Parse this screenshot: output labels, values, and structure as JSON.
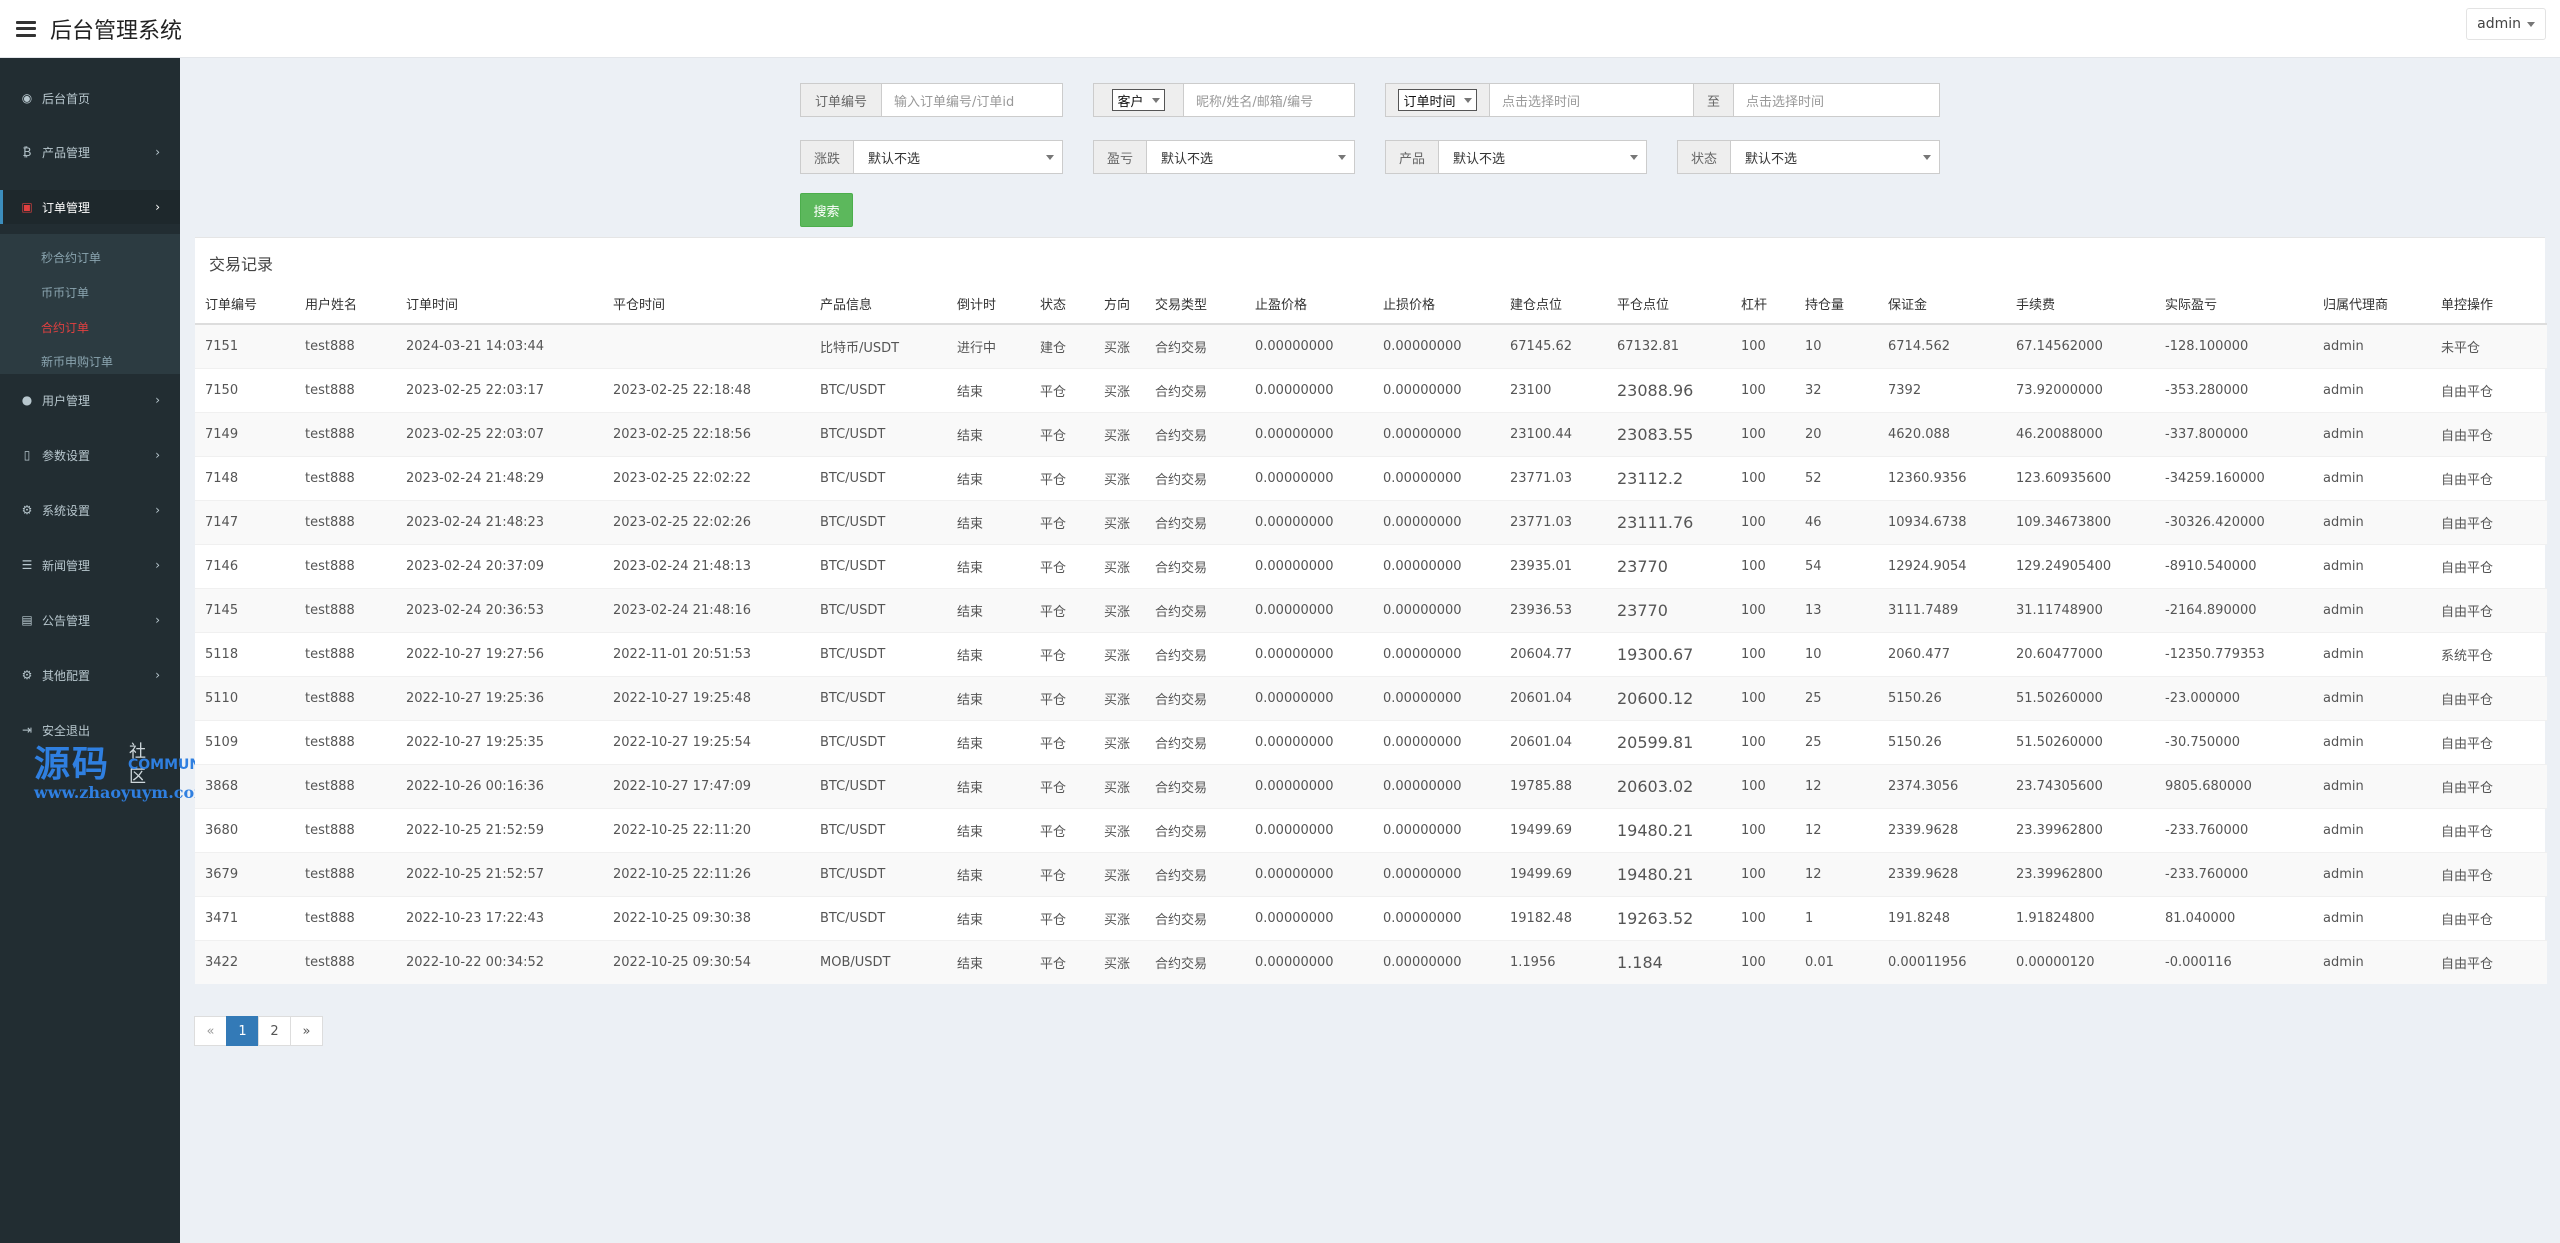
{
  "header": {
    "title": "后台管理系统",
    "user": "admin"
  },
  "sidebar": {
    "items": [
      {
        "label": "后台首页",
        "icon": "dashboard-icon",
        "glyph": "◉"
      },
      {
        "label": "产品管理",
        "icon": "bitcoin-icon",
        "glyph": "₿"
      },
      {
        "label": "订单管理",
        "icon": "order-icon",
        "glyph": "▣"
      },
      {
        "label": "用户管理",
        "icon": "user-icon",
        "glyph": "●"
      },
      {
        "label": "参数设置",
        "icon": "file-icon",
        "glyph": "▯"
      },
      {
        "label": "系统设置",
        "icon": "gears-icon",
        "glyph": "⚙"
      },
      {
        "label": "新闻管理",
        "icon": "list-icon",
        "glyph": "☰"
      },
      {
        "label": "公告管理",
        "icon": "notice-icon",
        "glyph": "▤"
      },
      {
        "label": "其他配置",
        "icon": "gear-icon",
        "glyph": "⚙"
      },
      {
        "label": "安全退出",
        "icon": "logout-icon",
        "glyph": "⇥"
      }
    ],
    "submenu": [
      "秒合约订单",
      "币币订单",
      "合约订单",
      "新币申购订单"
    ]
  },
  "watermark": {
    "big": "源码",
    "small": "社区",
    "community": "COMMUNITY",
    "url": "www.zhaoyuym.com"
  },
  "filters": {
    "order_no_label": "订单编号",
    "order_no_placeholder": "输入订单编号/订单id",
    "customer_select": "客户",
    "customer_placeholder": "昵称/姓名/邮箱/编号",
    "time_select": "订单时间",
    "time_from_placeholder": "点击选择时间",
    "time_to_label": "至",
    "time_to_placeholder": "点击选择时间",
    "rise_fall_label": "涨跌",
    "profit_label": "盈亏",
    "product_label": "产品",
    "status_label": "状态",
    "default_option": "默认不选",
    "search_button": "搜索"
  },
  "table": {
    "title": "交易记录",
    "columns": [
      "订单编号",
      "用户姓名",
      "订单时间",
      "平仓时间",
      "产品信息",
      "倒计时",
      "状态",
      "方向",
      "交易类型",
      "止盈价格",
      "止损价格",
      "建仓点位",
      "平仓点位",
      "杠杆",
      "持仓量",
      "保证金",
      "手续费",
      "实际盈亏",
      "归属代理商",
      "单控操作"
    ],
    "rows": [
      [
        "7151",
        "test888",
        "2024-03-21 14:03:44",
        "",
        "比特币/USDT",
        "进行中",
        "建仓",
        "买涨",
        "合约交易",
        "0.00000000",
        "0.00000000",
        "67145.62",
        "67132.81",
        "100",
        "10",
        "6714.562",
        "67.14562000",
        "-128.100000",
        "admin",
        "未平仓"
      ],
      [
        "7150",
        "test888",
        "2023-02-25 22:03:17",
        "2023-02-25 22:18:48",
        "BTC/USDT",
        "结束",
        "平仓",
        "买涨",
        "合约交易",
        "0.00000000",
        "0.00000000",
        "23100",
        "23088.96",
        "100",
        "32",
        "7392",
        "73.92000000",
        "-353.280000",
        "admin",
        "自由平仓"
      ],
      [
        "7149",
        "test888",
        "2023-02-25 22:03:07",
        "2023-02-25 22:18:56",
        "BTC/USDT",
        "结束",
        "平仓",
        "买涨",
        "合约交易",
        "0.00000000",
        "0.00000000",
        "23100.44",
        "23083.55",
        "100",
        "20",
        "4620.088",
        "46.20088000",
        "-337.800000",
        "admin",
        "自由平仓"
      ],
      [
        "7148",
        "test888",
        "2023-02-24 21:48:29",
        "2023-02-25 22:02:22",
        "BTC/USDT",
        "结束",
        "平仓",
        "买涨",
        "合约交易",
        "0.00000000",
        "0.00000000",
        "23771.03",
        "23112.2",
        "100",
        "52",
        "12360.9356",
        "123.60935600",
        "-34259.160000",
        "admin",
        "自由平仓"
      ],
      [
        "7147",
        "test888",
        "2023-02-24 21:48:23",
        "2023-02-25 22:02:26",
        "BTC/USDT",
        "结束",
        "平仓",
        "买涨",
        "合约交易",
        "0.00000000",
        "0.00000000",
        "23771.03",
        "23111.76",
        "100",
        "46",
        "10934.6738",
        "109.34673800",
        "-30326.420000",
        "admin",
        "自由平仓"
      ],
      [
        "7146",
        "test888",
        "2023-02-24 20:37:09",
        "2023-02-24 21:48:13",
        "BTC/USDT",
        "结束",
        "平仓",
        "买涨",
        "合约交易",
        "0.00000000",
        "0.00000000",
        "23935.01",
        "23770",
        "100",
        "54",
        "12924.9054",
        "129.24905400",
        "-8910.540000",
        "admin",
        "自由平仓"
      ],
      [
        "7145",
        "test888",
        "2023-02-24 20:36:53",
        "2023-02-24 21:48:16",
        "BTC/USDT",
        "结束",
        "平仓",
        "买涨",
        "合约交易",
        "0.00000000",
        "0.00000000",
        "23936.53",
        "23770",
        "100",
        "13",
        "3111.7489",
        "31.11748900",
        "-2164.890000",
        "admin",
        "自由平仓"
      ],
      [
        "5118",
        "test888",
        "2022-10-27 19:27:56",
        "2022-11-01 20:51:53",
        "BTC/USDT",
        "结束",
        "平仓",
        "买涨",
        "合约交易",
        "0.00000000",
        "0.00000000",
        "20604.77",
        "19300.67",
        "100",
        "10",
        "2060.477",
        "20.60477000",
        "-12350.779353",
        "admin",
        "系统平仓"
      ],
      [
        "5110",
        "test888",
        "2022-10-27 19:25:36",
        "2022-10-27 19:25:48",
        "BTC/USDT",
        "结束",
        "平仓",
        "买涨",
        "合约交易",
        "0.00000000",
        "0.00000000",
        "20601.04",
        "20600.12",
        "100",
        "25",
        "5150.26",
        "51.50260000",
        "-23.000000",
        "admin",
        "自由平仓"
      ],
      [
        "5109",
        "test888",
        "2022-10-27 19:25:35",
        "2022-10-27 19:25:54",
        "BTC/USDT",
        "结束",
        "平仓",
        "买涨",
        "合约交易",
        "0.00000000",
        "0.00000000",
        "20601.04",
        "20599.81",
        "100",
        "25",
        "5150.26",
        "51.50260000",
        "-30.750000",
        "admin",
        "自由平仓"
      ],
      [
        "3868",
        "test888",
        "2022-10-26 00:16:36",
        "2022-10-27 17:47:09",
        "BTC/USDT",
        "结束",
        "平仓",
        "买涨",
        "合约交易",
        "0.00000000",
        "0.00000000",
        "19785.88",
        "20603.02",
        "100",
        "12",
        "2374.3056",
        "23.74305600",
        "9805.680000",
        "admin",
        "自由平仓"
      ],
      [
        "3680",
        "test888",
        "2022-10-25 21:52:59",
        "2022-10-25 22:11:20",
        "BTC/USDT",
        "结束",
        "平仓",
        "买涨",
        "合约交易",
        "0.00000000",
        "0.00000000",
        "19499.69",
        "19480.21",
        "100",
        "12",
        "2339.9628",
        "23.39962800",
        "-233.760000",
        "admin",
        "自由平仓"
      ],
      [
        "3679",
        "test888",
        "2022-10-25 21:52:57",
        "2022-10-25 22:11:26",
        "BTC/USDT",
        "结束",
        "平仓",
        "买涨",
        "合约交易",
        "0.00000000",
        "0.00000000",
        "19499.69",
        "19480.21",
        "100",
        "12",
        "2339.9628",
        "23.39962800",
        "-233.760000",
        "admin",
        "自由平仓"
      ],
      [
        "3471",
        "test888",
        "2022-10-23 17:22:43",
        "2022-10-25 09:30:38",
        "BTC/USDT",
        "结束",
        "平仓",
        "买涨",
        "合约交易",
        "0.00000000",
        "0.00000000",
        "19182.48",
        "19263.52",
        "100",
        "1",
        "191.8248",
        "1.91824800",
        "81.040000",
        "admin",
        "自由平仓"
      ],
      [
        "3422",
        "test888",
        "2022-10-22 00:34:52",
        "2022-10-25 09:30:54",
        "MOB/USDT",
        "结束",
        "平仓",
        "买涨",
        "合约交易",
        "0.00000000",
        "0.00000000",
        "1.1956",
        "1.184",
        "100",
        "0.01",
        "0.00011956",
        "0.00000120",
        "-0.000116",
        "admin",
        "自由平仓"
      ]
    ]
  },
  "pagination": {
    "prev": "«",
    "pages": [
      "1",
      "2"
    ],
    "next": "»",
    "current": "1"
  }
}
